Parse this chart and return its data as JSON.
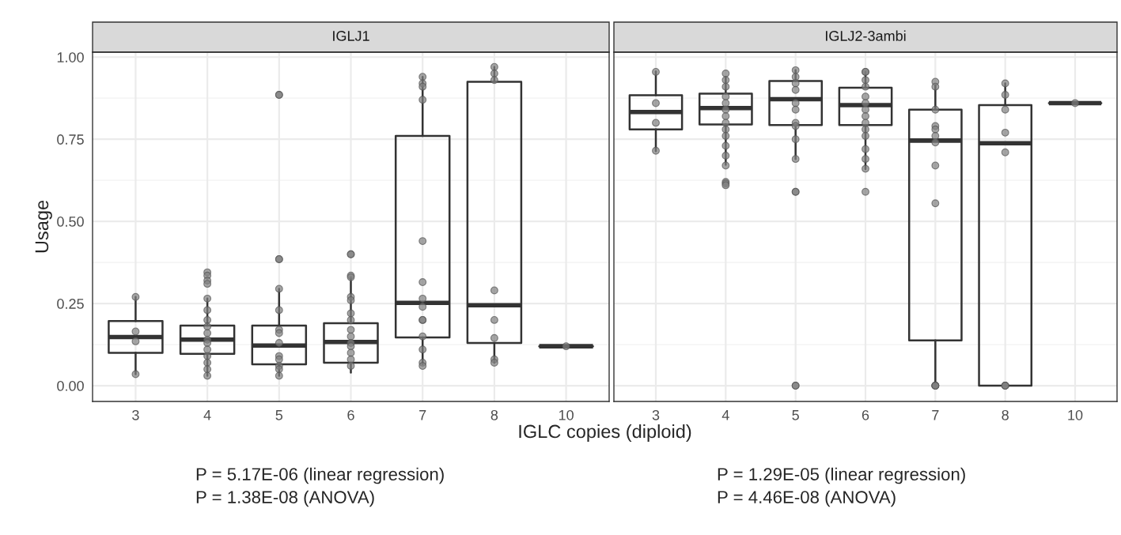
{
  "chart_data": [
    {
      "type": "box",
      "title": "IGLJ1",
      "ylabel": "Usage",
      "xlabel": "IGLC copies (diploid)",
      "categories": [
        "3",
        "4",
        "5",
        "6",
        "7",
        "8",
        "10"
      ],
      "ylim": [
        -0.048,
        1.015
      ],
      "yticks": [
        {
          "value": 0,
          "label": "0.00"
        },
        {
          "value": 0.25,
          "label": "0.25"
        },
        {
          "value": 0.5,
          "label": "0.50"
        },
        {
          "value": 0.75,
          "label": "0.75"
        },
        {
          "value": 1,
          "label": "1.00"
        }
      ],
      "grid": true,
      "boxes": [
        {
          "low": 0.035,
          "q1": 0.1,
          "median": 0.148,
          "q3": 0.197,
          "high": 0.27
        },
        {
          "low": 0.03,
          "q1": 0.097,
          "median": 0.14,
          "q3": 0.183,
          "high": 0.265
        },
        {
          "low": 0.03,
          "q1": 0.065,
          "median": 0.122,
          "q3": 0.183,
          "high": 0.295
        },
        {
          "low": 0.04,
          "q1": 0.07,
          "median": 0.133,
          "q3": 0.19,
          "high": 0.33
        },
        {
          "low": 0.065,
          "q1": 0.147,
          "median": 0.252,
          "q3": 0.76,
          "high": 0.94
        },
        {
          "low": 0.07,
          "q1": 0.13,
          "median": 0.245,
          "q3": 0.925,
          "high": 0.97
        },
        {
          "low": 0.12,
          "q1": 0.12,
          "median": 0.12,
          "q3": 0.12,
          "high": 0.12
        }
      ],
      "series": [
        {
          "type": "scatter",
          "color": "#808080",
          "x": [
            "3",
            "3",
            "3",
            "3",
            "4",
            "4",
            "4",
            "4",
            "4",
            "4",
            "4",
            "4",
            "4",
            "4",
            "4",
            "4",
            "4",
            "4",
            "4",
            "4",
            "5",
            "5",
            "5",
            "5",
            "5",
            "5",
            "5",
            "5",
            "5",
            "5",
            "5",
            "5",
            "5",
            "5",
            "6",
            "6",
            "6",
            "6",
            "6",
            "6",
            "6",
            "6",
            "6",
            "6",
            "6",
            "6",
            "6",
            "6",
            "6",
            "7",
            "7",
            "7",
            "7",
            "7",
            "7",
            "7",
            "7",
            "7",
            "7",
            "7",
            "7",
            "7",
            "7",
            "8",
            "8",
            "8",
            "8",
            "8",
            "8",
            "8",
            "8",
            "10"
          ],
          "values": [
            0.27,
            0.165,
            0.135,
            0.035,
            0.345,
            0.335,
            0.32,
            0.31,
            0.265,
            0.23,
            0.2,
            0.18,
            0.16,
            0.14,
            0.13,
            0.11,
            0.09,
            0.07,
            0.05,
            0.03,
            0.885,
            0.885,
            0.385,
            0.385,
            0.295,
            0.23,
            0.17,
            0.16,
            0.13,
            0.09,
            0.08,
            0.06,
            0.05,
            0.03,
            0.4,
            0.4,
            0.335,
            0.33,
            0.27,
            0.26,
            0.22,
            0.2,
            0.17,
            0.15,
            0.13,
            0.12,
            0.1,
            0.08,
            0.06,
            0.94,
            0.92,
            0.91,
            0.87,
            0.44,
            0.315,
            0.265,
            0.24,
            0.2,
            0.2,
            0.15,
            0.11,
            0.07,
            0.06,
            0.97,
            0.95,
            0.93,
            0.29,
            0.2,
            0.145,
            0.08,
            0.07,
            0.12
          ]
        }
      ],
      "annotations": [
        "P = 5.17E-06 (linear regression)",
        "P = 1.38E-08 (ANOVA)"
      ]
    },
    {
      "type": "box",
      "title": "IGLJ2-3ambi",
      "categories": [
        "3",
        "4",
        "5",
        "6",
        "7",
        "8",
        "10"
      ],
      "tick_labels": "x",
      "ylim": [
        -0.048,
        1.015
      ],
      "yticks": [
        {
          "value": 0,
          "label": null
        },
        {
          "value": 0.25,
          "label": null
        },
        {
          "value": 0.5,
          "label": null
        },
        {
          "value": 0.75,
          "label": null
        },
        {
          "value": 1,
          "label": null
        }
      ],
      "grid": true,
      "boxes": [
        {
          "low": 0.714,
          "q1": 0.78,
          "median": 0.833,
          "q3": 0.884,
          "high": 0.956
        },
        {
          "low": 0.672,
          "q1": 0.795,
          "median": 0.845,
          "q3": 0.889,
          "high": 0.94
        },
        {
          "low": 0.69,
          "q1": 0.793,
          "median": 0.872,
          "q3": 0.927,
          "high": 0.96
        },
        {
          "low": 0.659,
          "q1": 0.793,
          "median": 0.854,
          "q3": 0.907,
          "high": 0.955
        },
        {
          "low": 0,
          "q1": 0.138,
          "median": 0.746,
          "q3": 0.84,
          "high": 0.915
        },
        {
          "low": 0,
          "q1": 0,
          "median": 0.738,
          "q3": 0.854,
          "high": 0.92
        },
        {
          "low": 0.86,
          "q1": 0.86,
          "median": 0.86,
          "q3": 0.86,
          "high": 0.86
        }
      ],
      "series": [
        {
          "type": "scatter",
          "color": "#808080",
          "x": [
            "3",
            "3",
            "3",
            "3",
            "4",
            "4",
            "4",
            "4",
            "4",
            "4",
            "4",
            "4",
            "4",
            "4",
            "4",
            "4",
            "4",
            "4",
            "4",
            "4",
            "5",
            "5",
            "5",
            "5",
            "5",
            "5",
            "5",
            "5",
            "5",
            "5",
            "5",
            "5",
            "5",
            "5",
            "6",
            "6",
            "6",
            "6",
            "6",
            "6",
            "6",
            "6",
            "6",
            "6",
            "6",
            "6",
            "6",
            "6",
            "6",
            "7",
            "7",
            "7",
            "7",
            "7",
            "7",
            "7",
            "7",
            "7",
            "7",
            "7",
            "7",
            "7",
            "8",
            "8",
            "8",
            "8",
            "8",
            "8",
            "8",
            "8",
            "10"
          ],
          "values": [
            0.955,
            0.86,
            0.8,
            0.715,
            0.95,
            0.93,
            0.91,
            0.88,
            0.86,
            0.84,
            0.82,
            0.8,
            0.78,
            0.76,
            0.73,
            0.7,
            0.67,
            0.62,
            0.615,
            0.61,
            0.96,
            0.94,
            0.92,
            0.9,
            0.86,
            0.84,
            0.8,
            0.79,
            0.75,
            0.69,
            0.59,
            0.59,
            0,
            0,
            0.955,
            0.955,
            0.93,
            0.91,
            0.88,
            0.86,
            0.84,
            0.82,
            0.8,
            0.78,
            0.76,
            0.72,
            0.69,
            0.66,
            0.59,
            0.925,
            0.91,
            0.84,
            0.79,
            0.78,
            0.76,
            0.74,
            0.67,
            0.555,
            0,
            0,
            0,
            0,
            0.92,
            0.885,
            0.84,
            0.77,
            0.71,
            0,
            0,
            0,
            0.86
          ]
        }
      ],
      "annotations": [
        "P = 1.29E-05 (linear regression)",
        "P = 4.46E-08 (ANOVA)"
      ]
    }
  ]
}
